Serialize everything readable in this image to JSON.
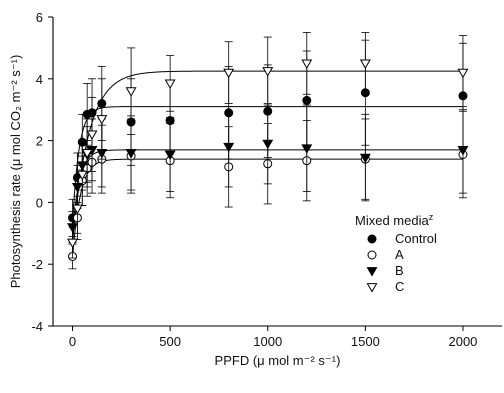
{
  "chart_data": {
    "type": "scatter",
    "title": "",
    "xlabel": "PPFD (μ mol m⁻² s⁻¹)",
    "ylabel": "Photosynthesis rate (μ mol CO₂ m⁻² s⁻¹)",
    "xlim": [
      -100,
      2200
    ],
    "ylim": [
      -4,
      6
    ],
    "xticks": [
      0,
      500,
      1000,
      1500,
      2000
    ],
    "yticks": [
      -4,
      -2,
      0,
      2,
      4,
      6
    ],
    "legend": {
      "title": "Mixed media",
      "title_superscript": "z",
      "position": "lower-right"
    },
    "series": [
      {
        "name": "Control",
        "marker": "filled-circle",
        "curve": {
          "asymptote": 3.1,
          "rate": 0.03,
          "intercept": -0.7
        },
        "points": [
          {
            "x": 0,
            "y": -0.5,
            "err": 0.6
          },
          {
            "x": 25,
            "y": 0.8,
            "err": 0.8
          },
          {
            "x": 50,
            "y": 1.95,
            "err": 0.9
          },
          {
            "x": 75,
            "y": 2.85,
            "err": 1.0
          },
          {
            "x": 100,
            "y": 2.9,
            "err": 1.1
          },
          {
            "x": 150,
            "y": 3.2,
            "err": 1.2
          },
          {
            "x": 300,
            "y": 2.6,
            "err": 1.4
          },
          {
            "x": 500,
            "y": 2.65,
            "err": 1.3
          },
          {
            "x": 800,
            "y": 2.9,
            "err": 1.5
          },
          {
            "x": 1000,
            "y": 2.95,
            "err": 1.5
          },
          {
            "x": 1200,
            "y": 3.3,
            "err": 1.6
          },
          {
            "x": 1500,
            "y": 3.55,
            "err": 1.7
          },
          {
            "x": 2000,
            "y": 3.45,
            "err": 1.7
          }
        ]
      },
      {
        "name": "A",
        "marker": "open-circle",
        "curve": {
          "asymptote": 1.4,
          "rate": 0.025,
          "intercept": -1.8
        },
        "points": [
          {
            "x": 0,
            "y": -1.75,
            "err": 0.4
          },
          {
            "x": 25,
            "y": -0.5,
            "err": 0.7
          },
          {
            "x": 50,
            "y": 0.7,
            "err": 0.8
          },
          {
            "x": 75,
            "y": 1.1,
            "err": 0.9
          },
          {
            "x": 100,
            "y": 1.3,
            "err": 1.0
          },
          {
            "x": 150,
            "y": 1.4,
            "err": 1.1
          },
          {
            "x": 300,
            "y": 1.5,
            "err": 1.2
          },
          {
            "x": 500,
            "y": 1.35,
            "err": 1.2
          },
          {
            "x": 800,
            "y": 1.15,
            "err": 1.3
          },
          {
            "x": 1000,
            "y": 1.25,
            "err": 1.3
          },
          {
            "x": 1200,
            "y": 1.35,
            "err": 1.3
          },
          {
            "x": 1500,
            "y": 1.4,
            "err": 1.3
          },
          {
            "x": 2000,
            "y": 1.55,
            "err": 1.4
          }
        ]
      },
      {
        "name": "B",
        "marker": "filled-triangle-down",
        "curve": {
          "asymptote": 1.7,
          "rate": 0.028,
          "intercept": -1.0
        },
        "points": [
          {
            "x": 0,
            "y": -0.8,
            "err": 0.5
          },
          {
            "x": 25,
            "y": 0.5,
            "err": 0.7
          },
          {
            "x": 50,
            "y": 1.2,
            "err": 0.8
          },
          {
            "x": 75,
            "y": 1.55,
            "err": 0.9
          },
          {
            "x": 100,
            "y": 1.7,
            "err": 1.0
          },
          {
            "x": 150,
            "y": 1.6,
            "err": 1.1
          },
          {
            "x": 300,
            "y": 1.6,
            "err": 1.2
          },
          {
            "x": 500,
            "y": 1.55,
            "err": 1.2
          },
          {
            "x": 800,
            "y": 1.8,
            "err": 1.3
          },
          {
            "x": 1000,
            "y": 1.9,
            "err": 1.3
          },
          {
            "x": 1200,
            "y": 1.75,
            "err": 1.4
          },
          {
            "x": 1500,
            "y": 1.45,
            "err": 1.4
          },
          {
            "x": 2000,
            "y": 1.7,
            "err": 1.4
          }
        ]
      },
      {
        "name": "C",
        "marker": "open-triangle-down",
        "curve": {
          "asymptote": 4.25,
          "rate": 0.012,
          "intercept": -1.3
        },
        "points": [
          {
            "x": 0,
            "y": -1.3,
            "err": 0.5
          },
          {
            "x": 25,
            "y": -0.2,
            "err": 0.8
          },
          {
            "x": 50,
            "y": 0.9,
            "err": 1.0
          },
          {
            "x": 75,
            "y": 1.6,
            "err": 1.1
          },
          {
            "x": 100,
            "y": 2.2,
            "err": 1.2
          },
          {
            "x": 150,
            "y": 2.7,
            "err": 1.3
          },
          {
            "x": 300,
            "y": 3.6,
            "err": 1.4
          },
          {
            "x": 500,
            "y": 3.85,
            "err": 0.9
          },
          {
            "x": 800,
            "y": 4.2,
            "err": 1.0
          },
          {
            "x": 1000,
            "y": 4.25,
            "err": 1.1
          },
          {
            "x": 1200,
            "y": 4.5,
            "err": 1.0
          },
          {
            "x": 1500,
            "y": 4.5,
            "err": 1.0
          },
          {
            "x": 2000,
            "y": 4.2,
            "err": 1.2
          }
        ]
      }
    ]
  }
}
